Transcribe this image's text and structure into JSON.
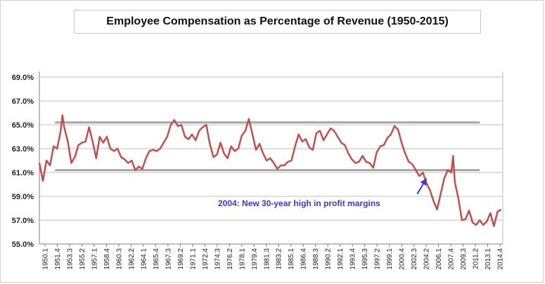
{
  "chart_data": {
    "type": "line",
    "title": "Employee Compensation as Percentage of Revenue (1950-2015)",
    "ylim": [
      55.0,
      69.0
    ],
    "ytick_labels": [
      "55.0%",
      "57.0%",
      "59.0%",
      "61.0%",
      "63.0%",
      "65.0%",
      "67.0%",
      "69.0%"
    ],
    "ytick_values": [
      55,
      57,
      59,
      61,
      63,
      65,
      67,
      69
    ],
    "xtick_labels": [
      "1950.1",
      "1951.4",
      "1953.3",
      "1955.2",
      "1957.1",
      "1958.4",
      "1960.3",
      "1962.2",
      "1964.1",
      "1965.4",
      "1967.3",
      "1969.2",
      "1971.1",
      "1972.4",
      "1974.3",
      "1976.2",
      "1978.1",
      "1979.4",
      "1981.3",
      "1983.2",
      "1985.1",
      "1986.4",
      "1988.3",
      "1990.2",
      "1992.1",
      "1993.4",
      "1995.3",
      "1997.2",
      "1999.1",
      "2000.4",
      "2002.3",
      "2004.2",
      "2006.1",
      "2007.4",
      "2009.3",
      "2011.2",
      "2013.1",
      "2014.4"
    ],
    "grid": true,
    "series": [
      {
        "color": "#c0504d",
        "x": [
          1950.0,
          1950.5,
          1951.0,
          1951.5,
          1952.0,
          1952.5,
          1953.0,
          1953.25,
          1953.5,
          1954.0,
          1954.5,
          1955.0,
          1955.5,
          1956.0,
          1956.5,
          1957.0,
          1957.5,
          1958.0,
          1958.5,
          1959.0,
          1959.5,
          1960.0,
          1960.5,
          1961.0,
          1961.5,
          1962.0,
          1962.5,
          1963.0,
          1963.5,
          1964.0,
          1964.5,
          1965.0,
          1965.5,
          1966.0,
          1966.5,
          1967.0,
          1967.5,
          1968.0,
          1968.5,
          1969.0,
          1969.5,
          1970.0,
          1970.5,
          1971.0,
          1971.5,
          1972.0,
          1972.5,
          1973.0,
          1973.5,
          1974.0,
          1974.5,
          1975.0,
          1975.5,
          1976.0,
          1976.5,
          1977.0,
          1977.5,
          1978.0,
          1978.5,
          1979.0,
          1979.5,
          1980.0,
          1980.5,
          1981.0,
          1981.5,
          1982.0,
          1982.5,
          1983.0,
          1983.5,
          1984.0,
          1984.5,
          1985.0,
          1985.5,
          1986.0,
          1986.5,
          1987.0,
          1987.5,
          1988.0,
          1988.5,
          1989.0,
          1989.5,
          1990.0,
          1990.5,
          1991.0,
          1991.5,
          1992.0,
          1992.5,
          1993.0,
          1993.5,
          1994.0,
          1994.5,
          1995.0,
          1995.5,
          1996.0,
          1996.5,
          1997.0,
          1997.5,
          1998.0,
          1998.5,
          1999.0,
          1999.5,
          2000.0,
          2000.5,
          2001.0,
          2001.5,
          2002.0,
          2002.5,
          2003.0,
          2003.5,
          2004.0,
          2004.5,
          2005.0,
          2005.5,
          2006.0,
          2006.5,
          2007.0,
          2007.5,
          2008.0,
          2008.25,
          2008.5,
          2009.0,
          2009.5,
          2010.0,
          2010.5,
          2011.0,
          2011.5,
          2012.0,
          2012.5,
          2013.0,
          2013.5,
          2014.0,
          2014.5,
          2015.0
        ],
        "values": [
          61.8,
          60.3,
          62.0,
          61.6,
          63.2,
          63.0,
          64.5,
          65.8,
          64.8,
          63.6,
          61.8,
          62.3,
          63.3,
          63.5,
          63.6,
          64.8,
          63.6,
          62.2,
          64.0,
          63.5,
          64.0,
          63.0,
          62.8,
          63.0,
          62.3,
          62.1,
          61.8,
          62.0,
          61.2,
          61.5,
          61.3,
          62.2,
          62.8,
          62.9,
          62.8,
          63.0,
          63.5,
          64.0,
          65.0,
          65.4,
          64.9,
          65.0,
          64.0,
          63.8,
          64.2,
          63.7,
          64.5,
          64.8,
          65.0,
          63.4,
          62.3,
          62.5,
          63.5,
          62.6,
          62.2,
          63.2,
          62.8,
          63.0,
          64.1,
          64.5,
          65.5,
          64.2,
          62.9,
          63.4,
          62.6,
          62.0,
          62.2,
          61.8,
          61.3,
          61.6,
          61.6,
          61.9,
          62.0,
          63.2,
          64.2,
          63.6,
          63.8,
          63.1,
          62.9,
          64.3,
          64.5,
          63.7,
          64.2,
          64.7,
          64.5,
          64.0,
          63.5,
          63.3,
          62.6,
          62.1,
          61.8,
          61.9,
          62.4,
          61.9,
          61.8,
          61.4,
          62.7,
          63.2,
          63.3,
          63.9,
          64.2,
          64.9,
          64.6,
          63.5,
          62.6,
          61.9,
          61.7,
          61.2,
          60.7,
          61.0,
          60.1,
          59.5,
          58.6,
          57.9,
          59.2,
          60.5,
          61.2,
          61.0,
          62.4,
          60.2,
          58.8,
          57.0,
          57.1,
          57.8,
          56.8,
          56.6,
          57.0,
          56.6,
          56.9,
          57.6,
          56.5,
          57.7,
          57.9
        ]
      }
    ],
    "reference_lines": [
      {
        "y": 65.2,
        "x_start": 1952.2,
        "x_end": 2012.0,
        "color": "#a6a6a6"
      },
      {
        "y": 61.2,
        "x_start": 1952.2,
        "x_end": 2012.0,
        "color": "#a6a6a6"
      }
    ],
    "annotation": {
      "text": "2004:  New 30-year high in profit margins",
      "color": "#3a3acf",
      "arrow_from": [
        2003.2,
        59.2
      ],
      "arrow_to": [
        2004.5,
        60.5
      ]
    }
  }
}
